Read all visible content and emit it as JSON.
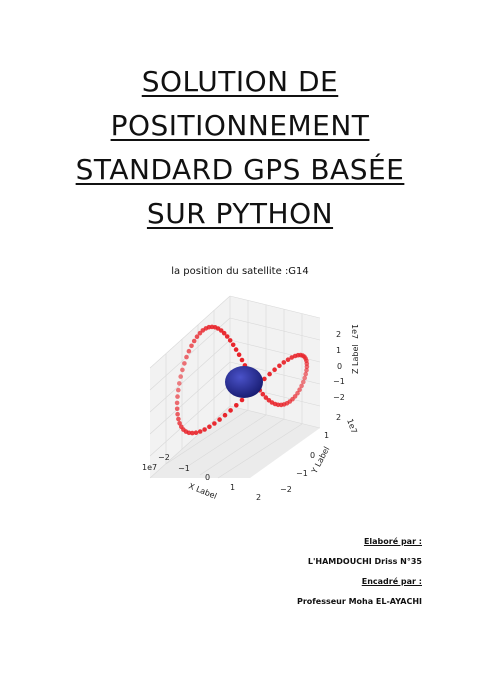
{
  "title_lines": [
    "SOLUTION DE",
    "POSITIONNEMENT",
    "STANDARD GPS BASÉE",
    "SUR PYTHON"
  ],
  "figure": {
    "title": "la position du satellite  :G14",
    "x_axis": {
      "label": "X Label",
      "ticks": [
        "−2",
        "−1",
        "0",
        "1",
        "2"
      ],
      "offset": "1e7"
    },
    "y_axis": {
      "label": "Y Label",
      "ticks": [
        "−2",
        "−1",
        "0",
        "1",
        "2"
      ],
      "offset": "1e7"
    },
    "z_axis": {
      "label": "Z Label",
      "ticks": [
        "−2",
        "−1",
        "0",
        "1",
        "2"
      ],
      "offset": "1e7"
    },
    "colors": {
      "orbit": "#e8232a",
      "earth": "#2b2f9e"
    }
  },
  "credits": {
    "prepared_label": "Elaboré par :",
    "prepared_name": "L'HAMDOUCHI Driss N°35",
    "supervised_label": "Encadré par :",
    "supervised_name": "Professeur Moha EL-AYACHI"
  }
}
